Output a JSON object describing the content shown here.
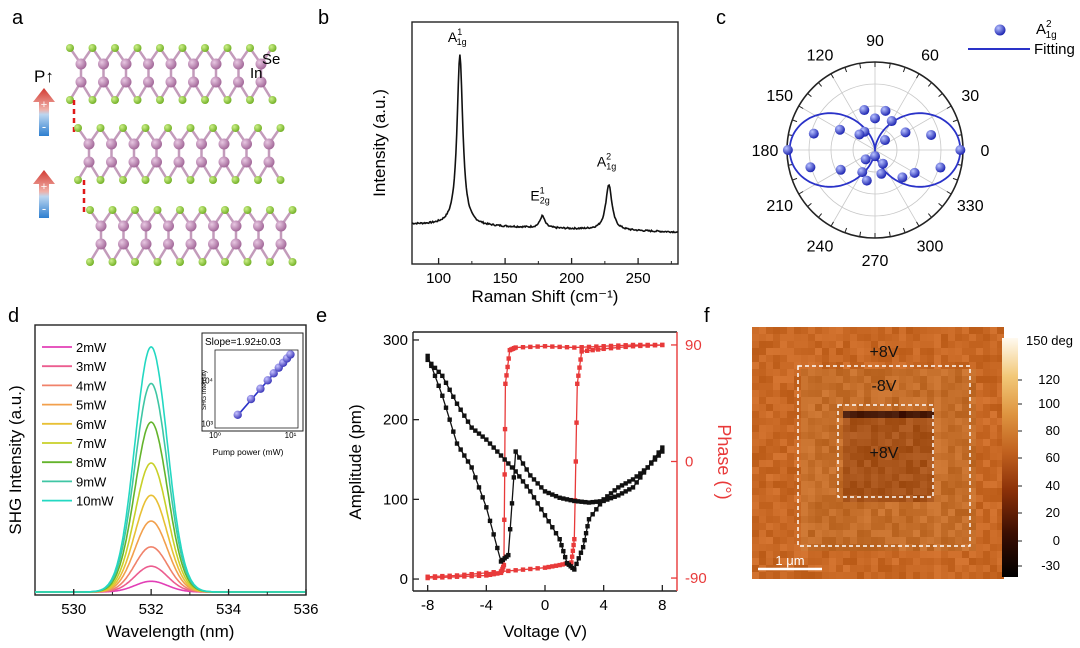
{
  "colors": {
    "axis": "#222222",
    "curve": "#111111",
    "blue": "#2a32c8",
    "red": "#e83a3a",
    "in_atom": "#b07ca8",
    "se_atom": "#8cc43a",
    "bond": "#c39bbb",
    "dash": "#e01818"
  },
  "panel_a": {
    "label": "a",
    "se_label": "Se",
    "in_label": "In",
    "p_label": "P↑",
    "plus": "+",
    "minus": "-"
  },
  "chart_data": [
    {
      "id": "b",
      "label": "b",
      "type": "line",
      "title": "",
      "xlabel": "Raman Shift (cm⁻¹)",
      "ylabel": "Intensity (a.u.)",
      "xlim": [
        80,
        280
      ],
      "xticks": [
        100,
        150,
        200,
        250
      ],
      "baseline": 0.12,
      "slope": -0.0002,
      "noise": 0.008,
      "peaks": [
        {
          "x": 116,
          "height": 0.86,
          "width": 2.6,
          "label": "A",
          "sup": "1",
          "sub": "1g"
        },
        {
          "x": 178,
          "height": 0.06,
          "width": 2.2,
          "label": "E",
          "sup": "1",
          "sub": "2g"
        },
        {
          "x": 228,
          "height": 0.23,
          "width": 2.8,
          "label": "A",
          "sup": "2",
          "sub": "1g"
        }
      ]
    },
    {
      "id": "c",
      "label": "c",
      "type": "scatter",
      "title": "",
      "angle_ticks": [
        "0",
        "30",
        "60",
        "90",
        "120",
        "150",
        "180",
        "210",
        "240",
        "270",
        "300",
        "330"
      ],
      "rmax": 1.0,
      "legend_marker_label": "A",
      "legend_marker_sup": "2",
      "legend_marker_sub": "1g",
      "legend_line_label": "Fitting",
      "points": [
        [
          0,
          0.97
        ],
        [
          15,
          0.66
        ],
        [
          30,
          0.4
        ],
        [
          45,
          0.16
        ],
        [
          60,
          0.38
        ],
        [
          75,
          0.46
        ],
        [
          90,
          0.36
        ],
        [
          105,
          0.47
        ],
        [
          120,
          0.24
        ],
        [
          135,
          0.25
        ],
        [
          150,
          0.46
        ],
        [
          165,
          0.72
        ],
        [
          180,
          0.99
        ],
        [
          195,
          0.76
        ],
        [
          210,
          0.45
        ],
        [
          225,
          0.15
        ],
        [
          240,
          0.29
        ],
        [
          255,
          0.36
        ],
        [
          270,
          0.07
        ],
        [
          285,
          0.28
        ],
        [
          300,
          0.18
        ],
        [
          315,
          0.44
        ],
        [
          330,
          0.52
        ],
        [
          345,
          0.77
        ]
      ]
    },
    {
      "id": "d",
      "label": "d",
      "type": "line",
      "title": "",
      "xlabel": "Wavelength (nm)",
      "ylabel": "SHG Intensity (a.u.)",
      "xlim": [
        529,
        536
      ],
      "xticks": [
        530,
        532,
        534,
        536
      ],
      "center": 532.0,
      "sigma": 0.42,
      "series": [
        {
          "name": "2mW",
          "amp": 0.05,
          "color": "#e23fb6"
        },
        {
          "name": "3mW",
          "amp": 0.12,
          "color": "#ec5d8f"
        },
        {
          "name": "4mW",
          "amp": 0.21,
          "color": "#f0826a"
        },
        {
          "name": "5mW",
          "amp": 0.33,
          "color": "#f2a04c"
        },
        {
          "name": "6mW",
          "amp": 0.45,
          "color": "#e8c035"
        },
        {
          "name": "7mW",
          "amp": 0.6,
          "color": "#c8d028"
        },
        {
          "name": "8mW",
          "amp": 0.79,
          "color": "#64b42c"
        },
        {
          "name": "9mW",
          "amp": 0.97,
          "color": "#3fc6a4"
        },
        {
          "name": "10mW",
          "amp": 1.14,
          "color": "#23d8c2"
        }
      ],
      "inset": {
        "slope_label": "Slope=1.92±0.03",
        "xlabel": "Pump power (mW)",
        "ylabel": "SHG Intensity",
        "x_ticks": [
          "10⁰",
          "10¹"
        ],
        "y_ticks": [
          "10³",
          "10⁴"
        ],
        "x": [
          2,
          3,
          4,
          5,
          6,
          7,
          8,
          9,
          10
        ],
        "y": [
          1600,
          3700,
          6400,
          10000,
          14500,
          19600,
          25400,
          32000,
          39500
        ]
      }
    },
    {
      "id": "e",
      "label": "e",
      "type": "line",
      "title": "",
      "xlabel": "Voltage (V)",
      "ylabel": "Amplitude (pm)",
      "y2label": "Phase (°)",
      "xlim": [
        -9,
        9
      ],
      "xticks": [
        -8,
        -4,
        0,
        4,
        8
      ],
      "ylim": [
        -15,
        310
      ],
      "yticks": [
        0,
        100,
        200,
        300
      ],
      "y2lim": [
        -100,
        100
      ],
      "y2ticks": [
        -90,
        0,
        90
      ],
      "amp_forward": [
        [
          -8,
          275
        ],
        [
          -7,
          255
        ],
        [
          -6,
          220
        ],
        [
          -5,
          190
        ],
        [
          -4,
          175
        ],
        [
          -3,
          155
        ],
        [
          -2,
          135
        ],
        [
          -1,
          110
        ],
        [
          0,
          80
        ],
        [
          1,
          50
        ],
        [
          1.5,
          20
        ],
        [
          2,
          12
        ],
        [
          2.6,
          40
        ],
        [
          3,
          75
        ],
        [
          4,
          100
        ],
        [
          5,
          115
        ],
        [
          6,
          125
        ],
        [
          7,
          140
        ],
        [
          8,
          160
        ]
      ],
      "amp_reverse": [
        [
          8,
          165
        ],
        [
          7,
          140
        ],
        [
          6,
          115
        ],
        [
          5,
          105
        ],
        [
          4,
          98
        ],
        [
          3,
          96
        ],
        [
          2,
          98
        ],
        [
          1,
          102
        ],
        [
          0,
          110
        ],
        [
          -1,
          130
        ],
        [
          -2,
          160
        ],
        [
          -2.5,
          30
        ],
        [
          -3,
          22
        ],
        [
          -4,
          90
        ],
        [
          -5,
          140
        ],
        [
          -6,
          170
        ],
        [
          -7,
          230
        ],
        [
          -8,
          280
        ]
      ],
      "phase_forward": [
        [
          -8,
          -90
        ],
        [
          -6,
          -89
        ],
        [
          -4,
          -88
        ],
        [
          -3,
          -86
        ],
        [
          -2.8,
          -80
        ],
        [
          -2.7,
          60
        ],
        [
          -2.4,
          86
        ],
        [
          -2,
          88
        ],
        [
          0,
          89
        ],
        [
          2,
          88
        ],
        [
          4,
          89
        ],
        [
          6,
          90
        ],
        [
          8,
          90
        ]
      ],
      "phase_reverse": [
        [
          8,
          90
        ],
        [
          6,
          89
        ],
        [
          4,
          87
        ],
        [
          2.5,
          85
        ],
        [
          2.2,
          60
        ],
        [
          2,
          -60
        ],
        [
          1.8,
          -78
        ],
        [
          1,
          -80
        ],
        [
          0,
          -82
        ],
        [
          -2,
          -84
        ],
        [
          -4,
          -86
        ],
        [
          -6,
          -88
        ],
        [
          -8,
          -89
        ]
      ]
    },
    {
      "id": "f",
      "label": "f",
      "type": "heatmap",
      "title": "",
      "colorbar_title": "150 deg",
      "colorbar_ticks": [
        "120",
        "100",
        "80",
        "60",
        "40",
        "20",
        "0",
        "-30"
      ],
      "scale_bar": "1 μm",
      "annotations": [
        "+8V",
        "-8V",
        "+8V"
      ]
    }
  ]
}
